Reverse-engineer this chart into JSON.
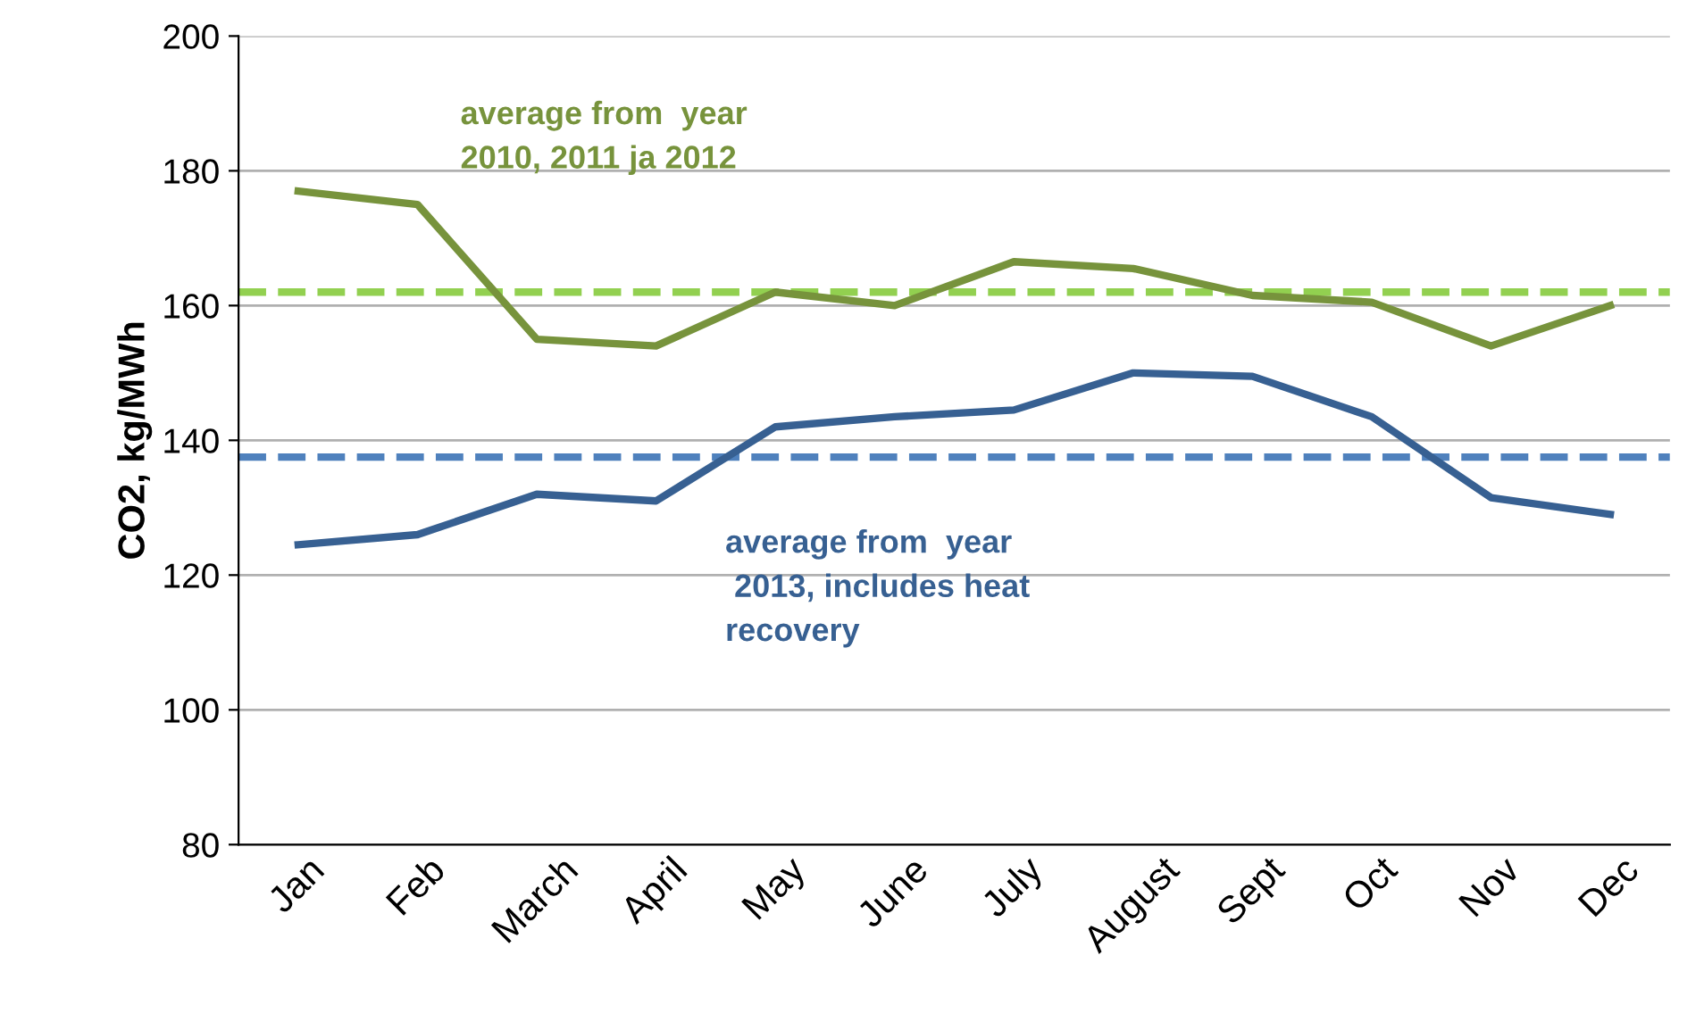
{
  "chart_data": {
    "type": "line",
    "ylabel": "CO2, kg/MWh",
    "categories": [
      "Jan",
      "Feb",
      "March",
      "April",
      "May",
      "June",
      "July",
      "August",
      "Sept",
      "Oct",
      "Nov",
      "Dec"
    ],
    "series": [
      {
        "name": "average from  year\n2010, 2011 ja 2012",
        "color": "#77933c",
        "values": [
          177,
          175,
          155,
          154,
          162,
          160,
          166.5,
          165.5,
          161.5,
          160.5,
          154,
          160
        ]
      },
      {
        "name": "average from  year\n 2013, includes heat\nrecovery",
        "color": "#376092",
        "values": [
          124.5,
          126,
          132,
          131,
          142,
          143.5,
          144.5,
          150,
          149.5,
          143.5,
          131.5,
          129
        ]
      }
    ],
    "ref_lines": [
      {
        "axis": "y",
        "value": 162,
        "color": "#92d050",
        "line_style": "dashed"
      },
      {
        "axis": "y",
        "value": 137.5,
        "color": "#4f81bd",
        "line_style": "dashed"
      }
    ],
    "ylim": [
      80,
      200
    ],
    "yticks": [
      80,
      100,
      120,
      140,
      160,
      180,
      200
    ],
    "grid": "y",
    "marker": "none",
    "line_style": "solid"
  }
}
